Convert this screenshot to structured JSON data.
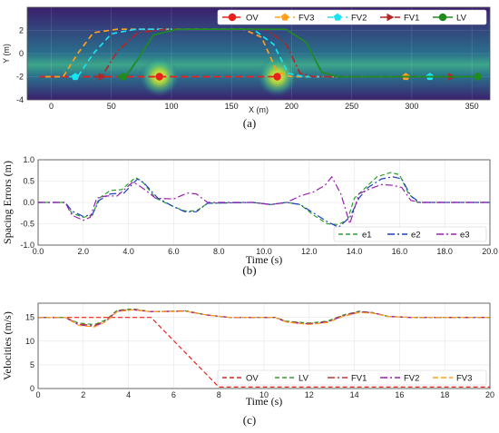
{
  "chart_data": [
    {
      "type": "line",
      "panel": "a",
      "caption": "(a)",
      "xlabel": "X (m)",
      "ylabel": "Y (m)",
      "xlim": [
        -20,
        365
      ],
      "ylim": [
        -4,
        4
      ],
      "xticks": [
        0,
        50,
        100,
        150,
        200,
        250,
        300,
        350
      ],
      "yticks": [
        -4,
        -2,
        0,
        2
      ],
      "legend_position": "top-right",
      "background": "heatmap",
      "series": [
        {
          "name": "OV",
          "color": "#e8211d",
          "dash": "8,4",
          "marker": "circle",
          "points": [
            [
              -10,
              -2
            ],
            [
              190,
              -2
            ]
          ],
          "marker_points": [
            [
              90,
              -2
            ],
            [
              188,
              -2
            ]
          ]
        },
        {
          "name": "FV3",
          "color": "#ff9f1c",
          "dash": "6,4",
          "marker": "pentagon",
          "points": [
            [
              -5,
              -2
            ],
            [
              10,
              -2
            ],
            [
              22,
              0
            ],
            [
              35,
              1.8
            ],
            [
              55,
              2.1
            ],
            [
              160,
              2.1
            ],
            [
              175,
              1.4
            ],
            [
              188,
              -1.6
            ],
            [
              200,
              -2
            ],
            [
              295,
              -2
            ]
          ],
          "marker_points": [
            [
              295,
              -2
            ]
          ]
        },
        {
          "name": "FV2",
          "color": "#19e3f2",
          "dash": "6,4",
          "marker": "pentagon",
          "points": [
            [
              15,
              -2
            ],
            [
              22,
              -2
            ],
            [
              35,
              0
            ],
            [
              50,
              1.7
            ],
            [
              70,
              2.1
            ],
            [
              168,
              2.1
            ],
            [
              185,
              0.8
            ],
            [
              197,
              -1.7
            ],
            [
              210,
              -2
            ],
            [
              315,
              -2
            ]
          ],
          "marker_points": [
            [
              20,
              -2
            ],
            [
              315,
              -2
            ]
          ]
        },
        {
          "name": "FV1",
          "color": "#b52525",
          "dash": "8,3,2,3",
          "marker": "triangle-right",
          "points": [
            [
              35,
              -2
            ],
            [
              42,
              -2
            ],
            [
              55,
              0.2
            ],
            [
              72,
              1.8
            ],
            [
              95,
              2.1
            ],
            [
              178,
              2.1
            ],
            [
              195,
              0.9
            ],
            [
              207,
              -1.7
            ],
            [
              218,
              -2
            ],
            [
              333,
              -2
            ]
          ],
          "marker_points": [
            [
              42,
              -2
            ],
            [
              333,
              -2
            ]
          ]
        },
        {
          "name": "LV",
          "color": "#1e8c1e",
          "dash": "",
          "marker": "circle",
          "points": [
            [
              55,
              -2
            ],
            [
              62,
              -2
            ],
            [
              72,
              -0.5
            ],
            [
              85,
              1.6
            ],
            [
              105,
              2.1
            ],
            [
              195,
              2.1
            ],
            [
              212,
              1.0
            ],
            [
              225,
              -1.6
            ],
            [
              238,
              -2
            ],
            [
              355,
              -2
            ]
          ],
          "marker_points": [
            [
              60,
              -2
            ],
            [
              355,
              -2
            ]
          ]
        }
      ],
      "hotspots": [
        [
          90,
          -2
        ],
        [
          188,
          -2
        ]
      ]
    },
    {
      "type": "line",
      "panel": "b",
      "caption": "(b)",
      "xlabel": "Time (s)",
      "ylabel": "Spacing Errors (m)",
      "xlim": [
        0,
        20
      ],
      "ylim": [
        -1.0,
        1.0
      ],
      "xticks": [
        0,
        2,
        4,
        6,
        8,
        10,
        12,
        14,
        16,
        18,
        20
      ],
      "yticks": [
        -1.0,
        -0.5,
        0.0,
        0.5,
        1.0
      ],
      "legend_position": "bottom-right",
      "series": [
        {
          "name": "e1",
          "color": "#2aa22a",
          "dash": "5,3",
          "points": [
            [
              0,
              0
            ],
            [
              1.2,
              0
            ],
            [
              1.5,
              -0.25
            ],
            [
              2.0,
              -0.35
            ],
            [
              2.4,
              -0.3
            ],
            [
              2.7,
              0.1
            ],
            [
              3.2,
              0.28
            ],
            [
              3.7,
              0.3
            ],
            [
              4.3,
              0.58
            ],
            [
              4.6,
              0.5
            ],
            [
              5.2,
              0.1
            ],
            [
              6.0,
              -0.1
            ],
            [
              6.5,
              -0.2
            ],
            [
              7.0,
              -0.2
            ],
            [
              7.5,
              -0.02
            ],
            [
              9.5,
              0
            ],
            [
              10.3,
              -0.05
            ],
            [
              11.0,
              0
            ],
            [
              11.6,
              -0.05
            ],
            [
              12.2,
              -0.3
            ],
            [
              12.8,
              -0.5
            ],
            [
              13.3,
              -0.52
            ],
            [
              13.7,
              -0.4
            ],
            [
              14.0,
              0.1
            ],
            [
              14.4,
              0.3
            ],
            [
              15.0,
              0.6
            ],
            [
              15.6,
              0.7
            ],
            [
              16.0,
              0.65
            ],
            [
              16.4,
              0.2
            ],
            [
              16.8,
              0
            ],
            [
              20,
              0
            ]
          ]
        },
        {
          "name": "e2",
          "color": "#1f3fc0",
          "dash": "8,3,2,3",
          "points": [
            [
              0,
              0
            ],
            [
              1.2,
              0
            ],
            [
              1.5,
              -0.2
            ],
            [
              2.0,
              -0.33
            ],
            [
              2.4,
              -0.28
            ],
            [
              2.7,
              0.05
            ],
            [
              3.2,
              0.2
            ],
            [
              3.8,
              0.22
            ],
            [
              4.4,
              0.55
            ],
            [
              4.7,
              0.45
            ],
            [
              5.3,
              0.1
            ],
            [
              6.0,
              -0.1
            ],
            [
              6.5,
              -0.22
            ],
            [
              7.0,
              -0.22
            ],
            [
              7.5,
              -0.02
            ],
            [
              9.5,
              0
            ],
            [
              10.3,
              -0.05
            ],
            [
              11.0,
              0
            ],
            [
              11.6,
              -0.05
            ],
            [
              12.2,
              -0.25
            ],
            [
              12.8,
              -0.45
            ],
            [
              13.3,
              -0.58
            ],
            [
              13.8,
              -0.35
            ],
            [
              14.2,
              0.1
            ],
            [
              14.6,
              0.35
            ],
            [
              15.2,
              0.55
            ],
            [
              15.7,
              0.6
            ],
            [
              16.1,
              0.55
            ],
            [
              16.5,
              0.15
            ],
            [
              16.9,
              0
            ],
            [
              20,
              0
            ]
          ]
        },
        {
          "name": "e3",
          "color": "#9b1fb0",
          "dash": "8,3,2,3",
          "points": [
            [
              0,
              0
            ],
            [
              1.2,
              0
            ],
            [
              1.5,
              -0.3
            ],
            [
              2.0,
              -0.42
            ],
            [
              2.3,
              -0.35
            ],
            [
              2.6,
              0.1
            ],
            [
              3.0,
              0.15
            ],
            [
              3.5,
              0.15
            ],
            [
              4.2,
              0.48
            ],
            [
              4.6,
              0.35
            ],
            [
              5.2,
              0.1
            ],
            [
              6.0,
              0.08
            ],
            [
              6.6,
              0.22
            ],
            [
              7.0,
              0.2
            ],
            [
              7.5,
              0
            ],
            [
              9.5,
              0
            ],
            [
              10.3,
              -0.05
            ],
            [
              11.0,
              0
            ],
            [
              11.6,
              0.15
            ],
            [
              12.2,
              0.25
            ],
            [
              12.7,
              0.4
            ],
            [
              13.0,
              0.6
            ],
            [
              13.4,
              0.2
            ],
            [
              13.8,
              -0.5
            ],
            [
              14.2,
              0.2
            ],
            [
              14.6,
              0.3
            ],
            [
              15.2,
              0.42
            ],
            [
              15.7,
              0.4
            ],
            [
              16.1,
              0.35
            ],
            [
              16.5,
              0.05
            ],
            [
              16.9,
              0
            ],
            [
              20,
              0
            ]
          ]
        }
      ]
    },
    {
      "type": "line",
      "panel": "c",
      "caption": "(c)",
      "xlabel": "Time (s)",
      "ylabel": "Velocities (m/s)",
      "xlim": [
        0,
        20
      ],
      "ylim": [
        0,
        18
      ],
      "xticks": [
        0,
        2,
        4,
        6,
        8,
        10,
        12,
        14,
        16,
        18,
        20
      ],
      "yticks": [
        0,
        5,
        10,
        15
      ],
      "legend_position": "bottom-right",
      "series": [
        {
          "name": "OV",
          "color": "#e8211d",
          "dash": "5,3",
          "points": [
            [
              0,
              15
            ],
            [
              5,
              15
            ],
            [
              8,
              0.3
            ],
            [
              20,
              0.3
            ]
          ]
        },
        {
          "name": "LV",
          "color": "#2aa22a",
          "dash": "5,3",
          "points": [
            [
              0,
              15
            ],
            [
              1.2,
              15
            ],
            [
              1.8,
              13.8
            ],
            [
              2.5,
              13.5
            ],
            [
              3.0,
              14.5
            ],
            [
              3.5,
              16.5
            ],
            [
              4.2,
              16.8
            ],
            [
              5.0,
              16.2
            ],
            [
              6.5,
              16.4
            ],
            [
              7.5,
              15.5
            ],
            [
              8.5,
              15
            ],
            [
              10.5,
              15
            ],
            [
              11.0,
              14.2
            ],
            [
              12.0,
              13.8
            ],
            [
              12.8,
              14.2
            ],
            [
              13.5,
              15.5
            ],
            [
              14.2,
              16.3
            ],
            [
              14.8,
              16.0
            ],
            [
              15.5,
              15.2
            ],
            [
              16.5,
              15
            ],
            [
              20,
              15
            ]
          ]
        },
        {
          "name": "FV1",
          "color": "#c0392b",
          "dash": "8,3,2,3",
          "points": [
            [
              0,
              15
            ],
            [
              1.2,
              15
            ],
            [
              1.8,
              13.6
            ],
            [
              2.5,
              13.3
            ],
            [
              3.0,
              14.3
            ],
            [
              3.5,
              16.4
            ],
            [
              4.2,
              16.7
            ],
            [
              5.0,
              16.2
            ],
            [
              6.5,
              16.4
            ],
            [
              7.5,
              15.5
            ],
            [
              8.5,
              15
            ],
            [
              10.5,
              15
            ],
            [
              11.0,
              14.1
            ],
            [
              12.0,
              13.7
            ],
            [
              12.8,
              14.1
            ],
            [
              13.5,
              15.4
            ],
            [
              14.2,
              16.2
            ],
            [
              14.8,
              16.0
            ],
            [
              15.5,
              15.2
            ],
            [
              16.5,
              15
            ],
            [
              20,
              15
            ]
          ]
        },
        {
          "name": "FV2",
          "color": "#9b1fb0",
          "dash": "8,3,2,3",
          "points": [
            [
              0,
              15
            ],
            [
              1.2,
              15
            ],
            [
              1.8,
              13.4
            ],
            [
              2.5,
              13.1
            ],
            [
              3.0,
              14.2
            ],
            [
              3.5,
              16.3
            ],
            [
              4.2,
              16.6
            ],
            [
              5.0,
              16.2
            ],
            [
              6.5,
              16.3
            ],
            [
              7.5,
              15.5
            ],
            [
              8.5,
              15
            ],
            [
              10.5,
              15
            ],
            [
              11.0,
              14.0
            ],
            [
              12.0,
              13.6
            ],
            [
              12.8,
              14.0
            ],
            [
              13.5,
              15.3
            ],
            [
              14.2,
              16.1
            ],
            [
              14.8,
              16.0
            ],
            [
              15.5,
              15.2
            ],
            [
              16.5,
              15
            ],
            [
              20,
              15
            ]
          ]
        },
        {
          "name": "FV3",
          "color": "#ff9f1c",
          "dash": "6,3",
          "points": [
            [
              0,
              15
            ],
            [
              1.2,
              15
            ],
            [
              1.8,
              13.3
            ],
            [
              2.5,
              13.0
            ],
            [
              3.0,
              14.1
            ],
            [
              3.5,
              16.2
            ],
            [
              4.2,
              16.6
            ],
            [
              5.0,
              16.2
            ],
            [
              6.5,
              16.3
            ],
            [
              7.5,
              15.5
            ],
            [
              8.5,
              15
            ],
            [
              10.5,
              15
            ],
            [
              11.0,
              14.0
            ],
            [
              12.0,
              13.5
            ],
            [
              12.8,
              13.9
            ],
            [
              13.5,
              15.2
            ],
            [
              14.2,
              16.0
            ],
            [
              14.8,
              15.9
            ],
            [
              15.5,
              15.2
            ],
            [
              16.5,
              15
            ],
            [
              20,
              15
            ]
          ]
        }
      ]
    }
  ]
}
